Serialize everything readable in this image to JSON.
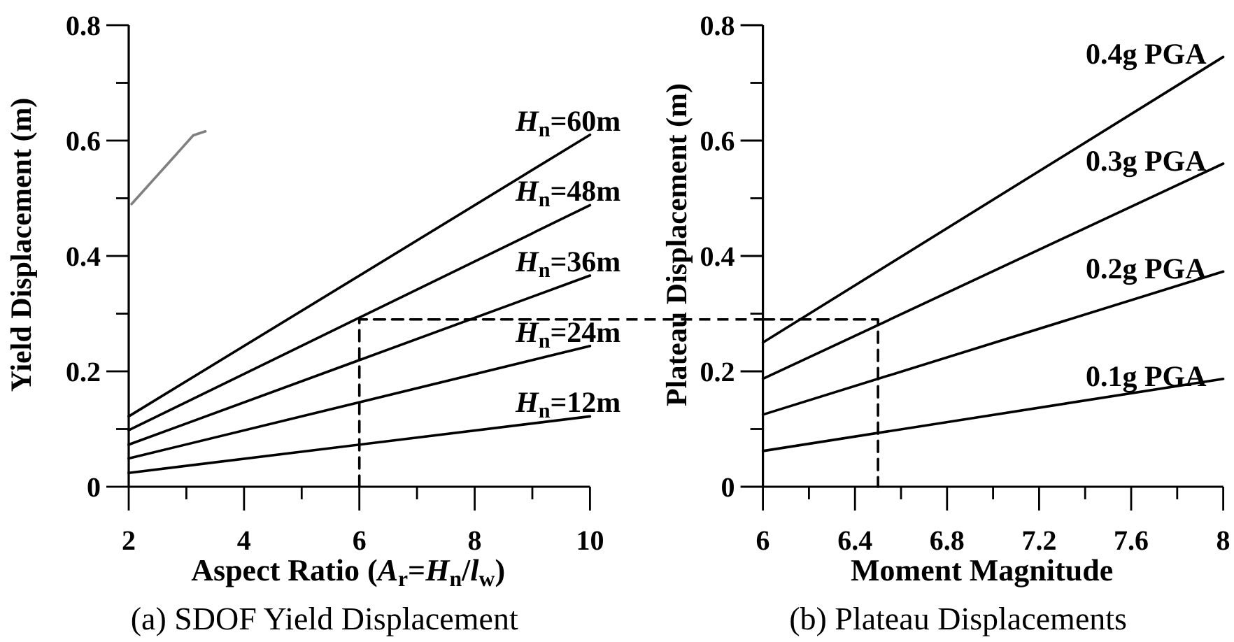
{
  "chart_data": [
    {
      "type": "line",
      "title": "(a) SDOF Yield Displacement",
      "xlabel": "Aspect Ratio (A$_{r}$=H$_{n}$/l$_{w}$)",
      "ylabel": "Yield Displacement (m)",
      "xlim": [
        2,
        10
      ],
      "ylim": [
        0,
        0.8
      ],
      "xticks": [
        2,
        {
          "value": 3,
          "label": null
        },
        4,
        {
          "value": 5,
          "label": null
        },
        6,
        {
          "value": 7,
          "label": null
        },
        8,
        {
          "value": 9,
          "label": null
        },
        10
      ],
      "yticks": [
        0,
        {
          "value": 0.1,
          "label": null
        },
        0.2,
        {
          "value": 0.3,
          "label": null
        },
        0.4,
        {
          "value": 0.5,
          "label": null
        },
        0.6,
        {
          "value": 0.7,
          "label": null
        },
        0.8
      ],
      "x": [
        2,
        10
      ],
      "series": [
        {
          "name": "H$_{n}$=60m",
          "color": "#000000",
          "values": [
            0.122,
            0.61
          ]
        },
        {
          "name": "H$_{n}$=48m",
          "color": "#000000",
          "values": [
            0.098,
            0.488
          ]
        },
        {
          "name": "H$_{n}$=36m",
          "color": "#000000",
          "values": [
            0.073,
            0.366
          ]
        },
        {
          "name": "H$_{n}$=24m",
          "color": "#000000",
          "values": [
            0.049,
            0.244
          ]
        },
        {
          "name": "H$_{n}$=12m",
          "color": "#000000",
          "values": [
            0.024,
            0.122
          ]
        },
        {
          "color": "#000000",
          "line_style": "dashed",
          "x": [
            6,
            6,
            10
          ],
          "values": [
            0,
            0.29,
            0.29
          ]
        },
        {
          "color": "#808080",
          "x": [
            2.05,
            3.12,
            3.33
          ],
          "values": [
            0.49,
            0.609,
            0.616
          ]
        }
      ]
    },
    {
      "type": "line",
      "title": "(b) Plateau Displacements",
      "xlabel": "Moment Magnitude",
      "ylabel": "Plateau Displacement (m)",
      "xlim": [
        6,
        8
      ],
      "ylim": [
        0,
        0.8
      ],
      "xticks": [
        6,
        {
          "value": 6.2,
          "label": null
        },
        6.4,
        {
          "value": 6.6,
          "label": null
        },
        6.8,
        {
          "value": 7,
          "label": null
        },
        7.2,
        {
          "value": 7.4,
          "label": null
        },
        7.6,
        {
          "value": 7.8,
          "label": null
        },
        8
      ],
      "yticks": [
        0,
        {
          "value": 0.1,
          "label": null
        },
        0.2,
        {
          "value": 0.3,
          "label": null
        },
        0.4,
        {
          "value": 0.5,
          "label": null
        },
        0.6,
        {
          "value": 0.7,
          "label": null
        },
        0.8
      ],
      "x": [
        6,
        8
      ],
      "series": [
        {
          "name": "0.4g PGA",
          "color": "#000000",
          "values": [
            0.25,
            0.745
          ]
        },
        {
          "name": "0.3g PGA",
          "color": "#000000",
          "values": [
            0.187,
            0.56
          ]
        },
        {
          "name": "0.2g PGA",
          "color": "#000000",
          "values": [
            0.125,
            0.373
          ]
        },
        {
          "name": "0.1g PGA",
          "color": "#000000",
          "values": [
            0.062,
            0.187
          ]
        },
        {
          "color": "#000000",
          "line_style": "dashed",
          "x": [
            6,
            6.5,
            6.5
          ],
          "values": [
            0.29,
            0.29,
            0
          ]
        }
      ]
    }
  ]
}
